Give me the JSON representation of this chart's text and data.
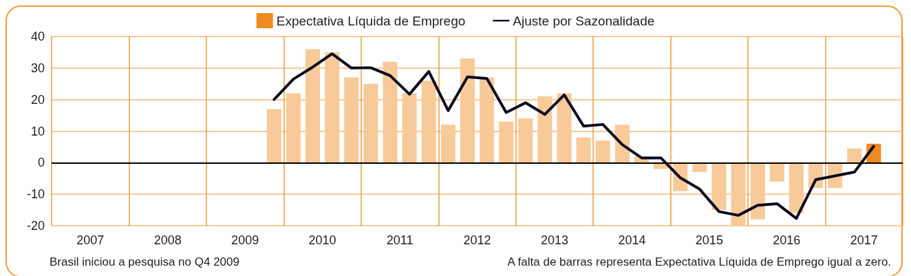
{
  "chart_data": {
    "type": "bar",
    "x": [
      2009.875,
      2010.125,
      2010.375,
      2010.625,
      2010.875,
      2011.125,
      2011.375,
      2011.625,
      2011.875,
      2012.125,
      2012.375,
      2012.625,
      2012.875,
      2013.125,
      2013.375,
      2013.625,
      2013.875,
      2014.125,
      2014.375,
      2014.625,
      2014.875,
      2015.125,
      2015.375,
      2015.625,
      2015.875,
      2016.125,
      2016.375,
      2016.625,
      2016.875,
      2017.125,
      2017.375,
      2017.625
    ],
    "series": [
      {
        "name": "Expectativa Líquida de Emprego",
        "color": "#ee8a1f",
        "colors": [
          "#f8ca9a",
          "#f8ca9a",
          "#f8ca9a",
          "#f8ca9a",
          "#f8ca9a",
          "#f8ca9a",
          "#f8ca9a",
          "#f8ca9a",
          "#f8ca9a",
          "#f8ca9a",
          "#f8ca9a",
          "#f8ca9a",
          "#f8ca9a",
          "#f8ca9a",
          "#f8ca9a",
          "#f8ca9a",
          "#f8ca9a",
          "#f8ca9a",
          "#f8ca9a",
          "#f8ca9a",
          "#f8ca9a",
          "#f8ca9a",
          "#f8ca9a",
          "#f8ca9a",
          "#f8ca9a",
          "#f8ca9a",
          "#f8ca9a",
          "#f8ca9a",
          "#f8ca9a",
          "#f8ca9a",
          "#f8ca9a",
          "#ee8a1f"
        ],
        "values": [
          17,
          22,
          36,
          35,
          27,
          25,
          32,
          22,
          26,
          12,
          33,
          27,
          13,
          14,
          21,
          22,
          8,
          7,
          12,
          2,
          -2,
          -9,
          -3,
          -15,
          -20,
          -18,
          -6,
          -16,
          -8,
          -8,
          4.5,
          6
        ]
      },
      {
        "name": "Ajuste por Sazonalidade",
        "type": "line",
        "color": "#0a0a1e",
        "values": [
          20,
          26.5,
          30.3,
          34.5,
          30,
          30.1,
          27.6,
          21.7,
          28.9,
          16.5,
          27.2,
          26.7,
          15.9,
          19,
          15.3,
          21.5,
          11.6,
          12.1,
          5.7,
          1.5,
          1.5,
          -4.8,
          -8.4,
          -15.5,
          -16.7,
          -13.5,
          -13,
          -17.7,
          -5.4,
          -4.2,
          -3,
          5.2
        ]
      }
    ],
    "xlim": [
      2007,
      2018
    ],
    "xticks": [
      {
        "value": 2007,
        "label": null
      },
      {
        "value": 2007.5,
        "label": "2007"
      },
      {
        "value": 2008,
        "label": null
      },
      {
        "value": 2008.5,
        "label": "2008"
      },
      {
        "value": 2009,
        "label": null
      },
      {
        "value": 2009.5,
        "label": "2009"
      },
      {
        "value": 2010,
        "label": null
      },
      {
        "value": 2010.5,
        "label": "2010"
      },
      {
        "value": 2011,
        "label": null
      },
      {
        "value": 2011.5,
        "label": "2011"
      },
      {
        "value": 2012,
        "label": null
      },
      {
        "value": 2012.5,
        "label": "2012"
      },
      {
        "value": 2013,
        "label": null
      },
      {
        "value": 2013.5,
        "label": "2013"
      },
      {
        "value": 2014,
        "label": null
      },
      {
        "value": 2014.5,
        "label": "2014"
      },
      {
        "value": 2015,
        "label": null
      },
      {
        "value": 2015.5,
        "label": "2015"
      },
      {
        "value": 2016,
        "label": null
      },
      {
        "value": 2016.5,
        "label": "2016"
      },
      {
        "value": 2017,
        "label": null
      },
      {
        "value": 2017.5,
        "label": "2017"
      },
      {
        "value": 2018,
        "label": null
      }
    ],
    "ylim": [
      -20,
      40
    ],
    "yticks": [
      -20,
      -10,
      0,
      10,
      20,
      30,
      40
    ],
    "grid": true,
    "legend": "top",
    "marker": "none",
    "line_style": "solid",
    "ref_lines": [
      {
        "axis": "y",
        "value": 0,
        "color": "#000000"
      }
    ],
    "annotations": [
      "Brasil iniciou a pesquisa no Q4 2009",
      "A falta de barras representa Expectativa Líquida de Emprego igual a zero."
    ]
  }
}
